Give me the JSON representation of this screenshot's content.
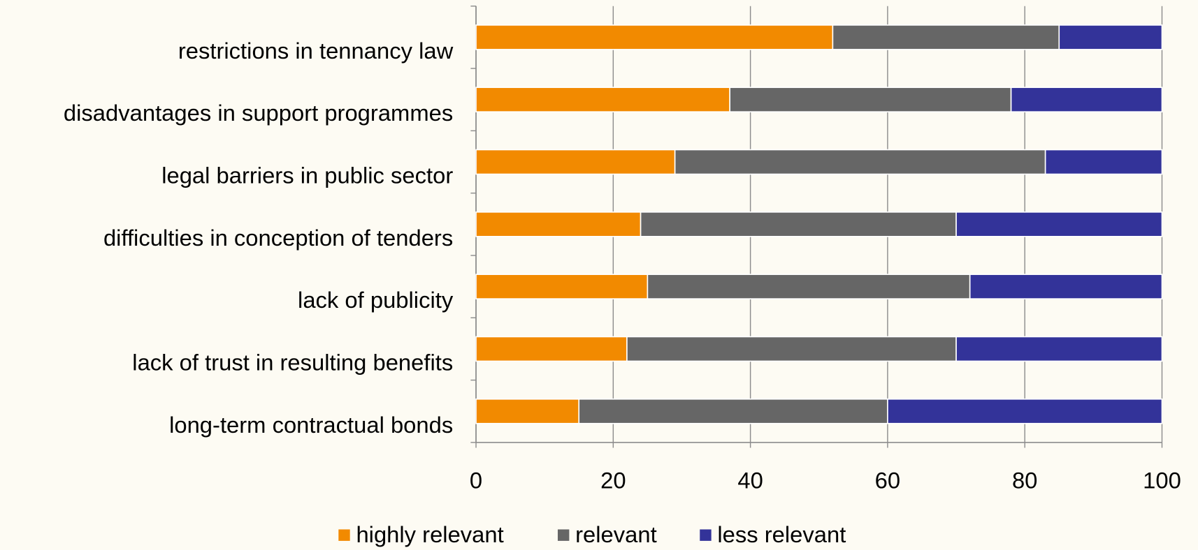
{
  "chart_data": {
    "type": "stacked_barh",
    "categories": [
      "restrictions in tennancy law",
      "disadvantages in support programmes",
      "legal barriers in public sector",
      "difficulties in conception of tenders",
      "lack of publicity",
      "lack of trust in resulting benefits",
      "long-term contractual bonds"
    ],
    "series": [
      {
        "name": "highly relevant",
        "color": "#f28a00",
        "values": [
          52,
          37,
          29,
          24,
          25,
          22,
          15
        ]
      },
      {
        "name": "relevant",
        "color": "#666666",
        "values": [
          33,
          41,
          54,
          46,
          47,
          48,
          45
        ]
      },
      {
        "name": "less relevant",
        "color": "#333399",
        "values": [
          15,
          22,
          17,
          30,
          28,
          30,
          40
        ]
      }
    ],
    "xlim": [
      0,
      100
    ],
    "xticks": [
      0,
      20,
      40,
      60,
      80,
      100
    ],
    "grid": true,
    "legend": "bottom"
  }
}
